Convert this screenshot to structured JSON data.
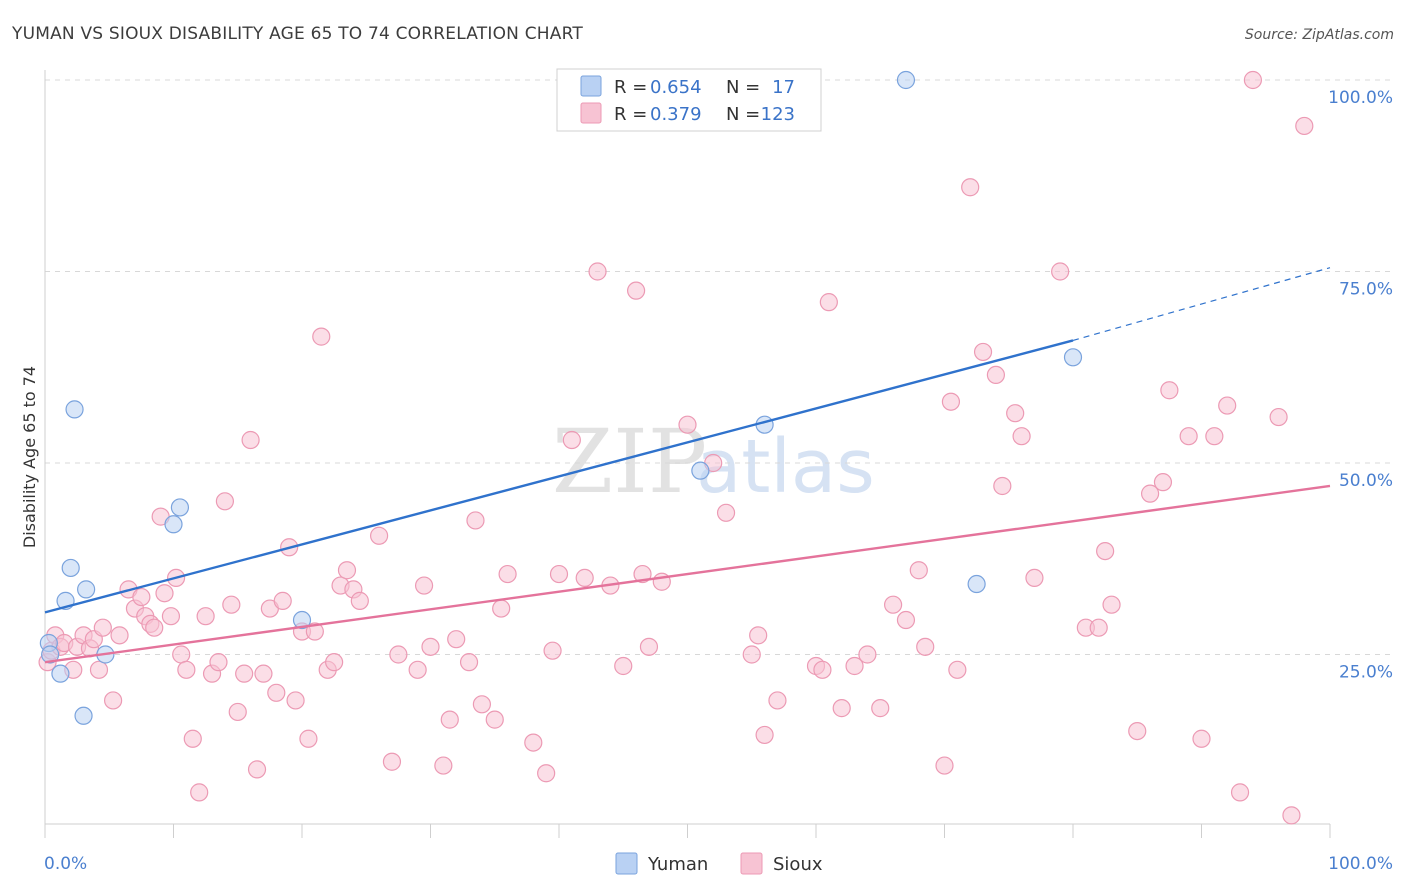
{
  "header": {
    "title": "YUMAN VS SIOUX DISABILITY AGE 65 TO 74 CORRELATION CHART",
    "source": "Source: ZipAtlas.com"
  },
  "watermark": {
    "zip": "ZIP",
    "atlas": "atlas"
  },
  "legend": {
    "rows": [
      {
        "r_label": "R =",
        "r_value": "0.654",
        "n_label": "N =",
        "n_value": "17"
      },
      {
        "r_label": "R =",
        "r_value": "0.379",
        "n_label": "N =",
        "n_value": "123"
      }
    ]
  },
  "bottom_legend": {
    "items": [
      "Yuman",
      "Sioux"
    ]
  },
  "colors": {
    "yuman_fill": "#b9d1f3",
    "yuman_stroke": "#7aa3dd",
    "yuman_line": "#2f72cc",
    "sioux_fill": "#f7c3d3",
    "sioux_stroke": "#ec9ab4",
    "sioux_line": "#e4739b",
    "grid": "#d8d8d8",
    "tick_label": "#4a7fcf"
  },
  "chart_data": {
    "type": "scatter",
    "title": "YUMAN VS SIOUX DISABILITY AGE 65 TO 74 CORRELATION CHART",
    "xlabel": "",
    "ylabel": "Disability Age 65 to 74",
    "xlim": [
      0,
      100
    ],
    "ylim": [
      0,
      100
    ],
    "x_tick_labels": [
      "0.0%",
      "100.0%"
    ],
    "y_tick_labels": [
      "25.0%",
      "50.0%",
      "75.0%",
      "100.0%"
    ],
    "y_ticks": [
      25,
      50,
      75,
      100
    ],
    "grid": true,
    "legend_position": "top-center",
    "series": [
      {
        "name": "Yuman",
        "R": 0.654,
        "N": 17,
        "trend": {
          "x": [
            0,
            80
          ],
          "y": [
            30.5,
            66
          ],
          "dashed_to": [
            100,
            75.5
          ]
        },
        "points": [
          [
            0.3,
            26.5
          ],
          [
            0.4,
            25
          ],
          [
            1.2,
            22.5
          ],
          [
            1.6,
            32
          ],
          [
            2,
            36.3
          ],
          [
            2.3,
            57
          ],
          [
            3,
            17
          ],
          [
            3.2,
            33.5
          ],
          [
            4.7,
            25
          ],
          [
            10,
            42
          ],
          [
            10.5,
            44.2
          ],
          [
            20,
            29.5
          ],
          [
            51,
            49
          ],
          [
            56,
            55
          ],
          [
            67,
            100
          ],
          [
            72.5,
            34.2
          ],
          [
            80,
            63.8
          ]
        ]
      },
      {
        "name": "Sioux",
        "R": 0.379,
        "N": 123,
        "trend": {
          "x": [
            0,
            100
          ],
          "y": [
            24,
            47
          ]
        },
        "points": [
          [
            0.2,
            24
          ],
          [
            0.5,
            25.5
          ],
          [
            0.8,
            27.5
          ],
          [
            1.2,
            26
          ],
          [
            1.5,
            26.5
          ],
          [
            2.2,
            23
          ],
          [
            2.5,
            26
          ],
          [
            3,
            27.5
          ],
          [
            3.5,
            25.8
          ],
          [
            3.8,
            27
          ],
          [
            4.2,
            23
          ],
          [
            4.5,
            28.5
          ],
          [
            5.3,
            19
          ],
          [
            5.8,
            27.5
          ],
          [
            6.5,
            33.5
          ],
          [
            7,
            31
          ],
          [
            7.5,
            32.5
          ],
          [
            7.8,
            30
          ],
          [
            8.2,
            29
          ],
          [
            8.5,
            28.5
          ],
          [
            9,
            43
          ],
          [
            9.3,
            33
          ],
          [
            9.8,
            30
          ],
          [
            10.2,
            35
          ],
          [
            10.6,
            25
          ],
          [
            11,
            23
          ],
          [
            11.5,
            14
          ],
          [
            12,
            7
          ],
          [
            12.5,
            30
          ],
          [
            13,
            22.5
          ],
          [
            13.5,
            24
          ],
          [
            14,
            45
          ],
          [
            14.5,
            31.5
          ],
          [
            15,
            17.5
          ],
          [
            15.5,
            22.5
          ],
          [
            16,
            53
          ],
          [
            16.5,
            10
          ],
          [
            17,
            22.5
          ],
          [
            17.5,
            31
          ],
          [
            18,
            20
          ],
          [
            18.5,
            32
          ],
          [
            19,
            39
          ],
          [
            19.5,
            19
          ],
          [
            20,
            28
          ],
          [
            20.5,
            14
          ],
          [
            21,
            28
          ],
          [
            21.5,
            66.5
          ],
          [
            22,
            23
          ],
          [
            22.5,
            24
          ],
          [
            23,
            34
          ],
          [
            23.5,
            36
          ],
          [
            24,
            33.5
          ],
          [
            24.5,
            32
          ],
          [
            26,
            40.5
          ],
          [
            27,
            11
          ],
          [
            27.5,
            25
          ],
          [
            29,
            23
          ],
          [
            29.5,
            34
          ],
          [
            30,
            26
          ],
          [
            31,
            10.5
          ],
          [
            31.5,
            16.5
          ],
          [
            32,
            27
          ],
          [
            33,
            24
          ],
          [
            33.5,
            42.5
          ],
          [
            34,
            18.5
          ],
          [
            35,
            16.5
          ],
          [
            35.5,
            31
          ],
          [
            36,
            35.5
          ],
          [
            38,
            13.5
          ],
          [
            39,
            9.5
          ],
          [
            39.5,
            25.5
          ],
          [
            40,
            35.5
          ],
          [
            41,
            53
          ],
          [
            42,
            35
          ],
          [
            43,
            75
          ],
          [
            44,
            34
          ],
          [
            45,
            23.5
          ],
          [
            46,
            72.5
          ],
          [
            46.5,
            35.5
          ],
          [
            47,
            26
          ],
          [
            48,
            34.5
          ],
          [
            50,
            55
          ],
          [
            52,
            50
          ],
          [
            53,
            43.5
          ],
          [
            55,
            25
          ],
          [
            55.5,
            27.5
          ],
          [
            56,
            14.5
          ],
          [
            57,
            19
          ],
          [
            60,
            23.5
          ],
          [
            60.5,
            23
          ],
          [
            61,
            71
          ],
          [
            62,
            18
          ],
          [
            63,
            23.5
          ],
          [
            64,
            25
          ],
          [
            65,
            18
          ],
          [
            66,
            31.5
          ],
          [
            67,
            29.5
          ],
          [
            68,
            36
          ],
          [
            68.5,
            26
          ],
          [
            70,
            10.5
          ],
          [
            70.5,
            58
          ],
          [
            71,
            23
          ],
          [
            72,
            86
          ],
          [
            73,
            64.5
          ],
          [
            74,
            61.5
          ],
          [
            74.5,
            47
          ],
          [
            75.5,
            56.5
          ],
          [
            76,
            53.5
          ],
          [
            77,
            35
          ],
          [
            79,
            75
          ],
          [
            81,
            28.5
          ],
          [
            82,
            28.5
          ],
          [
            82.5,
            38.5
          ],
          [
            83,
            31.5
          ],
          [
            85,
            15
          ],
          [
            86,
            46
          ],
          [
            87,
            47.5
          ],
          [
            87.5,
            59.5
          ],
          [
            89,
            53.5
          ],
          [
            90,
            14
          ],
          [
            91,
            53.5
          ],
          [
            92,
            57.5
          ],
          [
            93,
            7
          ],
          [
            94,
            100
          ],
          [
            96,
            56
          ],
          [
            97,
            4
          ],
          [
            98,
            94
          ]
        ]
      }
    ]
  }
}
